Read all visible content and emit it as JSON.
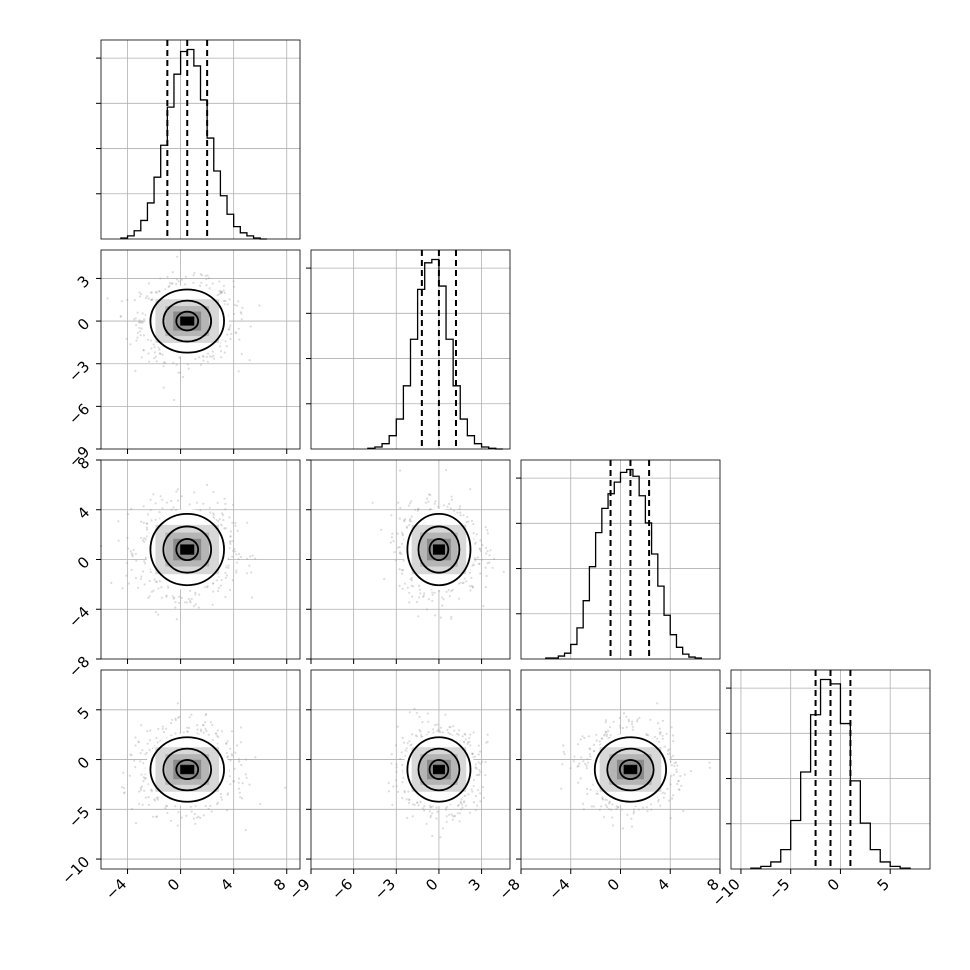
{
  "chart_data": {
    "type": "corner",
    "grid": true,
    "dim": 4,
    "parameters": [
      {
        "range": [
          -6,
          9
        ],
        "ticks": [
          -4,
          0,
          4,
          8
        ],
        "tick_labels": [
          "−4",
          "0",
          "4",
          "8"
        ],
        "quantiles": [
          -1.0,
          0.5,
          2.0
        ],
        "hist": {
          "bins": [
            -4.5,
            -4.0,
            -3.5,
            -3.0,
            -2.5,
            -2.0,
            -1.5,
            -1.0,
            -0.5,
            0.0,
            0.5,
            1.0,
            1.5,
            2.0,
            2.5,
            3.0,
            3.5,
            4.0,
            4.5,
            5.0,
            5.5,
            6.0,
            6.5
          ],
          "counts": [
            1,
            3,
            8,
            18,
            35,
            60,
            91,
            128,
            160,
            182,
            184,
            168,
            135,
            98,
            66,
            42,
            24,
            12,
            6,
            3,
            1,
            0
          ]
        }
      },
      {
        "range": [
          -9,
          5
        ],
        "ticks": [
          -9,
          -6,
          -3,
          0,
          3
        ],
        "tick_labels": [
          "−9",
          "−6",
          "−3",
          "0",
          "3"
        ],
        "quantiles": [
          -1.2,
          0.0,
          1.2
        ],
        "hist": {
          "bins": [
            -5.0,
            -4.5,
            -4.0,
            -3.5,
            -3.0,
            -2.5,
            -2.0,
            -1.5,
            -1.0,
            -0.5,
            0.0,
            0.5,
            1.0,
            1.5,
            2.0,
            2.5,
            3.0,
            3.5,
            4.0,
            4.5
          ],
          "counts": [
            1,
            3,
            8,
            20,
            45,
            95,
            165,
            240,
            280,
            285,
            245,
            165,
            95,
            45,
            20,
            8,
            3,
            1,
            0
          ]
        }
      },
      {
        "range": [
          -8,
          8
        ],
        "ticks": [
          -8,
          -4,
          0,
          4,
          8
        ],
        "tick_labels": [
          "−8",
          "−4",
          "0",
          "4",
          "8"
        ],
        "quantiles": [
          -0.8,
          0.8,
          2.3
        ],
        "hist": {
          "bins": [
            -6.0,
            -5.0,
            -4.5,
            -4.0,
            -3.5,
            -3.0,
            -2.5,
            -2.0,
            -1.5,
            -1.0,
            -0.5,
            0.0,
            0.5,
            1.0,
            1.5,
            2.0,
            2.5,
            3.0,
            3.5,
            4.0,
            4.5,
            5.0,
            5.5,
            6.0,
            6.5
          ],
          "counts": [
            1,
            3,
            6,
            15,
            32,
            60,
            95,
            130,
            155,
            170,
            182,
            192,
            195,
            188,
            168,
            140,
            108,
            75,
            45,
            25,
            12,
            5,
            2,
            1
          ]
        }
      },
      {
        "range": [
          -11,
          9
        ],
        "ticks": [
          -10,
          -5,
          0,
          5
        ],
        "tick_labels": [
          "−10",
          "−5",
          "0",
          "5"
        ],
        "quantiles": [
          -2.5,
          -1.0,
          1.0
        ],
        "hist": {
          "bins": [
            -9.0,
            -8.0,
            -7.0,
            -6.0,
            -5.0,
            -4.0,
            -3.0,
            -2.0,
            -1.0,
            0.0,
            1.0,
            2.0,
            3.0,
            4.0,
            5.0,
            6.0,
            7.0
          ],
          "counts": [
            1,
            3,
            8,
            22,
            55,
            110,
            175,
            215,
            210,
            165,
            100,
            52,
            22,
            8,
            3,
            1
          ]
        }
      }
    ]
  }
}
